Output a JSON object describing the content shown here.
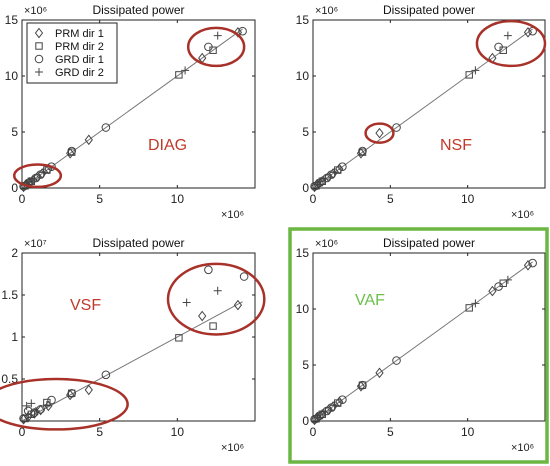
{
  "colors": {
    "highlight_red": "#a8322a",
    "annotation_red": "#c0392b",
    "annotation_green": "#6cc04a",
    "frame_green": "#6cb644",
    "marker": "#444444"
  },
  "legend": {
    "placement": "top-left",
    "entries": [
      {
        "label": "PRM dir 1",
        "marker": "diamond"
      },
      {
        "label": "PRM dir 2",
        "marker": "square"
      },
      {
        "label": "GRD dir 1",
        "marker": "circle"
      },
      {
        "label": "GRD dir 2",
        "marker": "plus"
      }
    ]
  },
  "chart_data": [
    {
      "type": "scatter",
      "title": "Dissipated power",
      "annotation": "DIAG",
      "x_multiplier": "×10^6",
      "y_multiplier": "×10^6",
      "xlim": [
        0,
        15
      ],
      "ylim": [
        0,
        15
      ],
      "xticks": [
        0,
        5,
        10
      ],
      "yticks": [
        0,
        5,
        10,
        15
      ],
      "xtick_labels": [
        "0",
        "5",
        "10"
      ],
      "ytick_labels": [
        "0",
        "5",
        "10",
        "15"
      ],
      "x_exp_label": "×10⁶",
      "y_exp_label": "×10⁶",
      "reference_line": [
        [
          0,
          0
        ],
        [
          14.2,
          14.2
        ]
      ],
      "highlight_circles": [
        {
          "cx": 1.0,
          "cy": 1.1,
          "rx": 1.5,
          "ry": 1.0
        },
        {
          "cx": 12.5,
          "cy": 12.6,
          "rx": 1.8,
          "ry": 1.7
        }
      ],
      "series": [
        {
          "name": "PRM dir 1",
          "marker": "diamond",
          "points": [
            [
              0.1,
              0.1
            ],
            [
              0.3,
              0.3
            ],
            [
              0.5,
              0.5
            ],
            [
              0.7,
              0.7
            ],
            [
              1.0,
              1.0
            ],
            [
              1.3,
              1.3
            ],
            [
              1.7,
              1.7
            ],
            [
              3.1,
              3.1
            ],
            [
              4.3,
              4.3
            ],
            [
              11.6,
              11.6
            ],
            [
              13.9,
              13.9
            ]
          ]
        },
        {
          "name": "PRM dir 2",
          "marker": "square",
          "points": [
            [
              0.2,
              0.2
            ],
            [
              0.6,
              0.6
            ],
            [
              1.6,
              1.6
            ],
            [
              3.2,
              3.2
            ],
            [
              10.1,
              10.1
            ],
            [
              12.3,
              12.3
            ]
          ]
        },
        {
          "name": "GRD dir 1",
          "marker": "circle",
          "points": [
            [
              0.1,
              0.15
            ],
            [
              0.4,
              0.45
            ],
            [
              0.9,
              0.9
            ],
            [
              1.2,
              1.2
            ],
            [
              1.9,
              1.9
            ],
            [
              3.2,
              3.3
            ],
            [
              5.4,
              5.4
            ],
            [
              12.0,
              12.6
            ],
            [
              14.2,
              14.0
            ]
          ]
        },
        {
          "name": "GRD dir 2",
          "marker": "plus",
          "points": [
            [
              0.3,
              0.3
            ],
            [
              0.5,
              0.6
            ],
            [
              0.8,
              0.8
            ],
            [
              1.4,
              1.4
            ],
            [
              10.5,
              10.5
            ],
            [
              12.6,
              13.6
            ]
          ]
        }
      ]
    },
    {
      "type": "scatter",
      "title": "Dissipated power",
      "annotation": "NSF",
      "x_multiplier": "×10^6",
      "y_multiplier": "×10^6",
      "xlim": [
        0,
        15
      ],
      "ylim": [
        0,
        15
      ],
      "xticks": [
        0,
        5,
        10
      ],
      "yticks": [
        0,
        5,
        10,
        15
      ],
      "xtick_labels": [
        "0",
        "5",
        "10"
      ],
      "ytick_labels": [
        "0",
        "5",
        "10",
        "15"
      ],
      "x_exp_label": "×10⁶",
      "y_exp_label": "×10⁶",
      "reference_line": [
        [
          0,
          0
        ],
        [
          14.2,
          14.2
        ]
      ],
      "highlight_circles": [
        {
          "cx": 4.3,
          "cy": 4.9,
          "rx": 0.9,
          "ry": 0.85
        },
        {
          "cx": 12.8,
          "cy": 12.9,
          "rx": 2.2,
          "ry": 2.0
        }
      ],
      "series": [
        {
          "name": "PRM dir 1",
          "marker": "diamond",
          "points": [
            [
              0.1,
              0.1
            ],
            [
              0.3,
              0.3
            ],
            [
              0.6,
              0.6
            ],
            [
              1.0,
              1.0
            ],
            [
              1.3,
              1.3
            ],
            [
              1.7,
              1.7
            ],
            [
              3.1,
              3.1
            ],
            [
              4.3,
              4.9
            ],
            [
              11.6,
              11.6
            ],
            [
              13.9,
              13.9
            ]
          ]
        },
        {
          "name": "PRM dir 2",
          "marker": "square",
          "points": [
            [
              0.2,
              0.2
            ],
            [
              0.6,
              0.6
            ],
            [
              1.6,
              1.6
            ],
            [
              3.2,
              3.2
            ],
            [
              10.1,
              10.1
            ],
            [
              12.3,
              12.3
            ]
          ]
        },
        {
          "name": "GRD dir 1",
          "marker": "circle",
          "points": [
            [
              0.1,
              0.15
            ],
            [
              0.4,
              0.45
            ],
            [
              0.9,
              0.9
            ],
            [
              1.2,
              1.2
            ],
            [
              1.9,
              1.9
            ],
            [
              3.2,
              3.3
            ],
            [
              5.4,
              5.4
            ],
            [
              12.0,
              12.6
            ],
            [
              14.2,
              14.0
            ]
          ]
        },
        {
          "name": "GRD dir 2",
          "marker": "plus",
          "points": [
            [
              0.3,
              0.3
            ],
            [
              0.5,
              0.6
            ],
            [
              0.8,
              0.8
            ],
            [
              1.4,
              1.4
            ],
            [
              10.5,
              10.5
            ],
            [
              12.6,
              13.6
            ]
          ]
        }
      ]
    },
    {
      "type": "scatter",
      "title": "Dissipated power",
      "annotation": "VSF",
      "x_multiplier": "×10^6",
      "y_multiplier": "×10^7",
      "xlim": [
        0,
        15
      ],
      "ylim": [
        0,
        2
      ],
      "xticks": [
        0,
        5,
        10
      ],
      "yticks": [
        0.5,
        1,
        1.5,
        2
      ],
      "xtick_labels": [
        "0",
        "5",
        "10"
      ],
      "ytick_labels": [
        "0.5",
        "1",
        "1.5",
        "2"
      ],
      "x_exp_label": "×10⁶",
      "y_exp_label": "×10⁷",
      "reference_line": [
        [
          0,
          0
        ],
        [
          14.2,
          1.42
        ]
      ],
      "highlight_circles": [
        {
          "cx": 2.2,
          "cy": 0.2,
          "rx": 4.6,
          "ry": 0.3
        },
        {
          "cx": 12.5,
          "cy": 1.45,
          "rx": 3.1,
          "ry": 0.42
        }
      ],
      "series": [
        {
          "name": "PRM dir 1",
          "marker": "diamond",
          "points": [
            [
              0.1,
              0.02
            ],
            [
              0.4,
              0.05
            ],
            [
              0.8,
              0.09
            ],
            [
              1.2,
              0.13
            ],
            [
              1.7,
              0.18
            ],
            [
              3.1,
              0.31
            ],
            [
              4.3,
              0.37
            ],
            [
              11.6,
              1.25
            ],
            [
              13.9,
              1.38
            ]
          ]
        },
        {
          "name": "PRM dir 2",
          "marker": "square",
          "points": [
            [
              0.2,
              0.03
            ],
            [
              0.6,
              0.08
            ],
            [
              1.6,
              0.22
            ],
            [
              3.2,
              0.33
            ],
            [
              10.1,
              0.99
            ],
            [
              12.3,
              1.13
            ]
          ]
        },
        {
          "name": "GRD dir 1",
          "marker": "circle",
          "points": [
            [
              0.1,
              0.03
            ],
            [
              0.4,
              0.12
            ],
            [
              0.8,
              0.1
            ],
            [
              1.2,
              0.14
            ],
            [
              1.9,
              0.25
            ],
            [
              3.2,
              0.33
            ],
            [
              5.4,
              0.55
            ],
            [
              12.0,
              1.8
            ],
            [
              14.3,
              1.72
            ]
          ]
        },
        {
          "name": "GRD dir 2",
          "marker": "plus",
          "points": [
            [
              0.3,
              0.18
            ],
            [
              0.6,
              0.21
            ],
            [
              0.9,
              0.12
            ],
            [
              1.6,
              0.19
            ],
            [
              10.6,
              1.41
            ],
            [
              12.6,
              1.55
            ]
          ]
        }
      ]
    },
    {
      "type": "scatter",
      "title": "Dissipated power",
      "annotation": "VAF",
      "x_multiplier": "×10^6",
      "y_multiplier": "×10^6",
      "xlim": [
        0,
        15
      ],
      "ylim": [
        0,
        15
      ],
      "xticks": [
        0,
        5,
        10
      ],
      "yticks": [
        0,
        5,
        10,
        15
      ],
      "xtick_labels": [
        "0",
        "5",
        "10"
      ],
      "ytick_labels": [
        "0",
        "5",
        "10",
        "15"
      ],
      "x_exp_label": "×10⁶",
      "y_exp_label": "×10⁶",
      "reference_line": [
        [
          0,
          0
        ],
        [
          14.2,
          14.2
        ]
      ],
      "highlight_circles": [],
      "series": [
        {
          "name": "PRM dir 1",
          "marker": "diamond",
          "points": [
            [
              0.1,
              0.1
            ],
            [
              0.3,
              0.3
            ],
            [
              0.6,
              0.6
            ],
            [
              1.0,
              1.0
            ],
            [
              1.3,
              1.3
            ],
            [
              1.7,
              1.7
            ],
            [
              3.1,
              3.1
            ],
            [
              4.3,
              4.3
            ],
            [
              11.6,
              11.6
            ],
            [
              13.9,
              13.9
            ]
          ]
        },
        {
          "name": "PRM dir 2",
          "marker": "square",
          "points": [
            [
              0.2,
              0.2
            ],
            [
              0.6,
              0.6
            ],
            [
              1.6,
              1.6
            ],
            [
              3.2,
              3.2
            ],
            [
              10.1,
              10.1
            ],
            [
              12.3,
              12.3
            ]
          ]
        },
        {
          "name": "GRD dir 1",
          "marker": "circle",
          "points": [
            [
              0.1,
              0.15
            ],
            [
              0.4,
              0.45
            ],
            [
              0.9,
              0.9
            ],
            [
              1.2,
              1.2
            ],
            [
              1.9,
              1.9
            ],
            [
              3.2,
              3.2
            ],
            [
              5.4,
              5.4
            ],
            [
              12.0,
              12.0
            ],
            [
              14.2,
              14.1
            ]
          ]
        },
        {
          "name": "GRD dir 2",
          "marker": "plus",
          "points": [
            [
              0.3,
              0.3
            ],
            [
              0.5,
              0.55
            ],
            [
              0.8,
              0.8
            ],
            [
              1.4,
              1.4
            ],
            [
              10.5,
              10.5
            ],
            [
              12.6,
              12.6
            ]
          ]
        }
      ]
    }
  ]
}
